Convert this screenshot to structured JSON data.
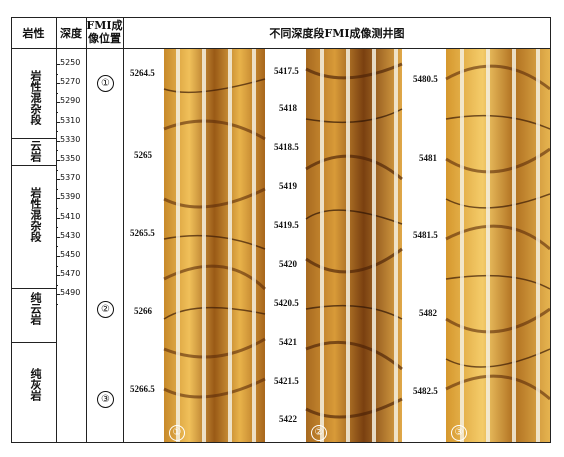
{
  "table": {
    "col_headers": {
      "lithology": "岩性",
      "depth": "深度",
      "fmi_position": "FMI成\n像位置",
      "images_title": "不同深度段FMI成像测井图"
    }
  },
  "lithology_segments": [
    {
      "label": "岩性混杂段"
    },
    {
      "label": "云岩"
    },
    {
      "label": "岩性混杂段"
    },
    {
      "label": "纯云岩"
    },
    {
      "label": "纯灰岩"
    }
  ],
  "depth_ticks": [
    "5250",
    "5270",
    "5290",
    "5310",
    "5330",
    "5350",
    "5370",
    "5390",
    "5410",
    "5430",
    "5450",
    "5470",
    "5490"
  ],
  "fmi_positions": [
    "①",
    "②",
    "③"
  ],
  "panels": [
    {
      "marker": "①",
      "left_labels": [
        "5264.5",
        "5265",
        "5265.5",
        "5266",
        "5266.5"
      ],
      "right_labels": []
    },
    {
      "marker": "②",
      "left_labels": [
        "5417.5",
        "5418",
        "5418.5",
        "5419",
        "5419.5",
        "5420",
        "5420.5",
        "5421",
        "5421.5",
        "5422"
      ],
      "right_labels": []
    },
    {
      "marker": "③",
      "left_labels": [
        "5480.5",
        "5481",
        "5481.5",
        "5482",
        "5482.5"
      ],
      "right_labels": []
    }
  ],
  "colors": {
    "image_dark": "#5a2a08",
    "image_mid": "#b8741e",
    "image_light": "#f2c25a",
    "image_pale": "#fbe6b0"
  }
}
